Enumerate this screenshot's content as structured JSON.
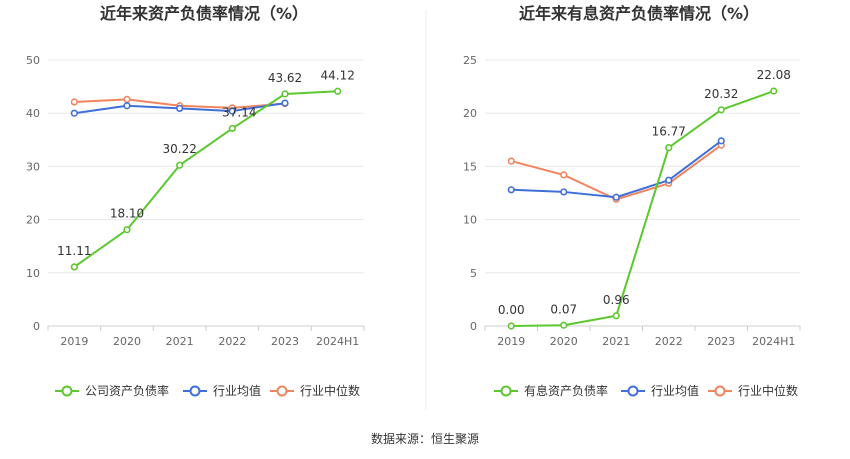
{
  "footer": {
    "source": "数据来源：恒生聚源"
  },
  "colors": {
    "green": "#5cc72f",
    "blue": "#3f6fd8",
    "orange": "#f0845e",
    "axis": "#cccccc",
    "grid": "#e8e8e8"
  },
  "chart_data": [
    {
      "type": "line",
      "title": "近年来资产负债率情况（%）",
      "categories": [
        "2019",
        "2020",
        "2021",
        "2022",
        "2023",
        "2024H1"
      ],
      "ylim": [
        0,
        50
      ],
      "yticks": [
        0,
        10,
        20,
        30,
        40,
        50
      ],
      "grid": true,
      "legend_position": "bottom",
      "series": [
        {
          "name": "公司资产负债率",
          "color": "#5cc72f",
          "values": [
            11.11,
            18.1,
            30.22,
            37.14,
            43.62,
            44.12
          ],
          "labels": [
            "11.11",
            "18.10",
            "30.22",
            "37.14",
            "43.62",
            "44.12"
          ]
        },
        {
          "name": "行业均值",
          "color": "#3f6fd8",
          "values": [
            40.0,
            41.4,
            40.9,
            40.4,
            41.9,
            null
          ]
        },
        {
          "name": "行业中位数",
          "color": "#f0845e",
          "values": [
            42.1,
            42.6,
            41.4,
            41.0,
            41.8,
            null
          ]
        }
      ]
    },
    {
      "type": "line",
      "title": "近年来有息资产负债率情况（%）",
      "categories": [
        "2019",
        "2020",
        "2021",
        "2022",
        "2023",
        "2024H1"
      ],
      "ylim": [
        0,
        25
      ],
      "yticks": [
        0,
        5,
        10,
        15,
        20,
        25
      ],
      "grid": true,
      "legend_position": "bottom",
      "series": [
        {
          "name": "有息资产负债率",
          "color": "#5cc72f",
          "values": [
            0.0,
            0.07,
            0.96,
            16.77,
            20.32,
            22.08
          ],
          "labels": [
            "0.00",
            "0.07",
            "0.96",
            "16.77",
            "20.32",
            "22.08"
          ]
        },
        {
          "name": "行业均值",
          "color": "#3f6fd8",
          "values": [
            12.8,
            12.6,
            12.1,
            13.7,
            17.4,
            null
          ]
        },
        {
          "name": "行业中位数",
          "color": "#f0845e",
          "values": [
            15.5,
            14.2,
            11.9,
            13.4,
            17.0,
            null
          ]
        }
      ]
    }
  ]
}
